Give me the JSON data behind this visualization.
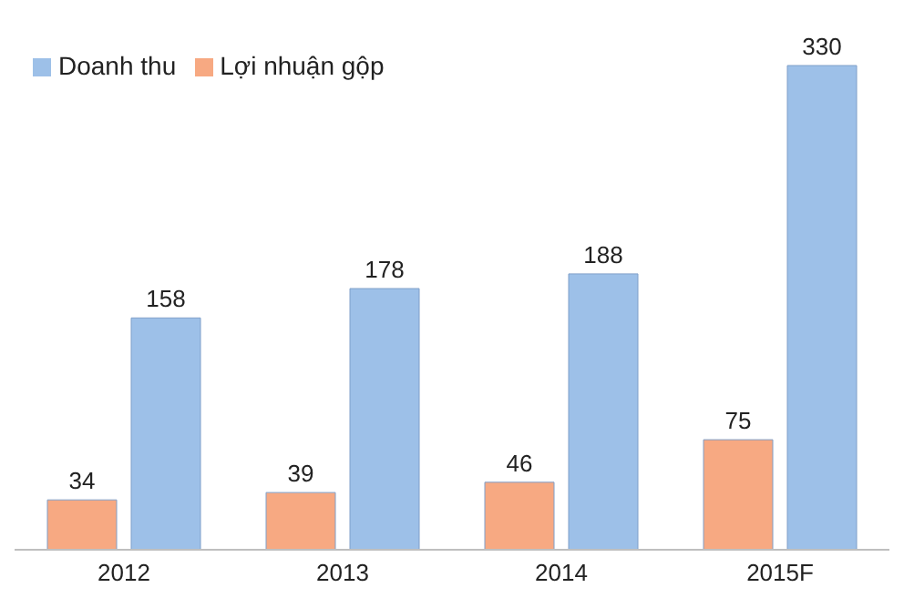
{
  "chart_data": {
    "type": "bar",
    "categories": [
      "2012",
      "2013",
      "2014",
      "2015F"
    ],
    "series": [
      {
        "name": "Lợi nhuận gộp",
        "color": "#f7a982",
        "values": [
          34,
          39,
          46,
          75
        ]
      },
      {
        "name": "Doanh thu",
        "color": "#9dc0e8",
        "values": [
          158,
          178,
          188,
          330
        ]
      }
    ],
    "data_labels": true,
    "legend": "top left",
    "grid": false
  }
}
